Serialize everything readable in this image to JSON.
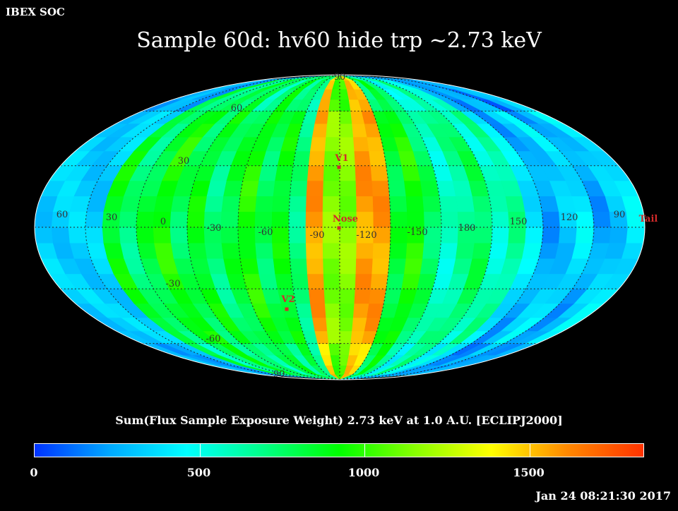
{
  "header": {
    "agency": "IBEX SOC",
    "title": "Sample 60d: hv60 hide trp ~2.73 keV"
  },
  "map": {
    "projection": "Mollweide (ecliptic J2000)",
    "lon_labels": [
      "60",
      "30",
      "0",
      "-30",
      "-60",
      "-90",
      "-120",
      "-150",
      "180",
      "150",
      "120",
      "90"
    ],
    "lat_labels": [
      "90",
      "60",
      "30",
      "-30",
      "-60",
      "-90"
    ],
    "markers": [
      {
        "name": "V1",
        "label": "V1",
        "color": "#d22a2a"
      },
      {
        "name": "Nose",
        "label": "Nose",
        "color": "#d22a2a"
      },
      {
        "name": "V2",
        "label": "V2",
        "color": "#d22a2a"
      },
      {
        "name": "Tail",
        "label": "Tail",
        "color": "#d22a2a"
      }
    ],
    "grid_color": "#555555",
    "outline_color": "#ffffff"
  },
  "colorbar": {
    "title": "Sum(Flux Sample Exposure Weight)  2.73 keV at 1.0 A.U. [ECLIPJ2000]",
    "min": 0,
    "max": 1850,
    "ticks": [
      "0",
      "500",
      "1000",
      "1500"
    ],
    "stops": [
      "#0033ff",
      "#00aaff",
      "#00ffff",
      "#00ff88",
      "#00ff00",
      "#88ff00",
      "#ffff00",
      "#ff8800",
      "#ff3300"
    ]
  },
  "footer": {
    "timestamp": "Jan 24 08:21:30 2017"
  }
}
